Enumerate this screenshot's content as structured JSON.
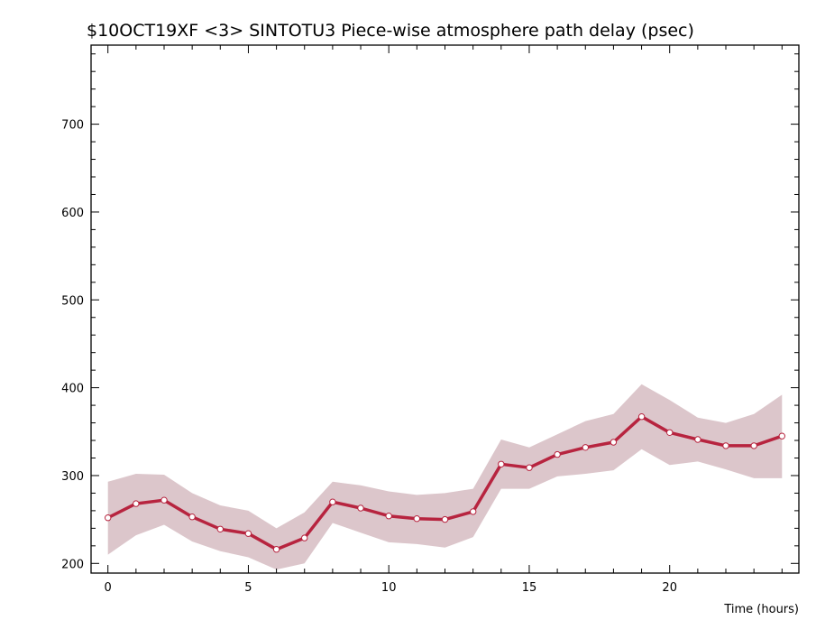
{
  "chart_data": {
    "type": "line",
    "title": "$10OCT19XF <3>  SINTOTU3  Piece-wise atmosphere path delay (psec)",
    "xlabel": "Time (hours)",
    "ylabel": "",
    "xlim": [
      -0.6,
      24.6
    ],
    "ylim": [
      189,
      790
    ],
    "x_ticks": [
      0,
      5,
      10,
      15,
      20
    ],
    "y_ticks": [
      200,
      300,
      400,
      500,
      600,
      700
    ],
    "x_minor_step": 1,
    "y_minor_step": 20,
    "grid": false,
    "legend": "none",
    "colors": {
      "line": "#b7243f",
      "band": "#dcc6cb",
      "marker_fill": "#ffffff"
    },
    "x": [
      0,
      1,
      2,
      3,
      4,
      5,
      6,
      7,
      8,
      9,
      10,
      11,
      12,
      13,
      14,
      15,
      16,
      17,
      18,
      19,
      20,
      21,
      22,
      23,
      24
    ],
    "series": [
      {
        "values": [
          252,
          268,
          272,
          253,
          239,
          234,
          216,
          229,
          270,
          263,
          254,
          251,
          250,
          259,
          313,
          309,
          324,
          332,
          338,
          367,
          349,
          341,
          334,
          334,
          345
        ]
      }
    ],
    "band": {
      "upper": [
        293,
        302,
        301,
        280,
        266,
        260,
        240,
        258,
        293,
        289,
        282,
        278,
        280,
        285,
        341,
        332,
        347,
        362,
        370,
        404,
        386,
        366,
        360,
        370,
        392
      ],
      "lower": [
        210,
        232,
        244,
        225,
        214,
        207,
        193,
        200,
        246,
        235,
        224,
        222,
        218,
        230,
        285,
        285,
        299,
        302,
        306,
        330,
        312,
        316,
        307,
        297,
        297
      ]
    }
  }
}
